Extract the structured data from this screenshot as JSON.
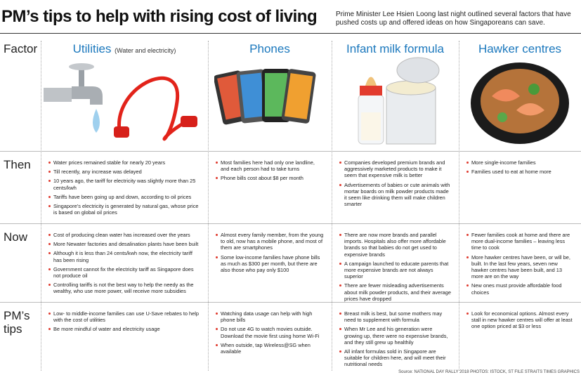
{
  "header": {
    "title": "PM’s tips to help with rising cost of living",
    "subtitle": "Prime Minister Lee Hsien Loong last night outlined several factors that have pushed costs up and offered ideas on how Singaporeans can save."
  },
  "table": {
    "corner": "Factor",
    "columns": [
      {
        "title": "Utilities",
        "note": "(Water and electricity)"
      },
      {
        "title": "Phones"
      },
      {
        "title": "Infant milk formula"
      },
      {
        "title": "Hawker centres"
      }
    ],
    "rows": [
      {
        "label": "Then",
        "cells": [
          [
            "Water prices remained stable for nearly 20 years",
            "Till recently, any increase was delayed",
            "10 years ago, the tariff for electricity was slightly more than 25 cents/kwh",
            "Tariffs have been going up and down, according to oil prices",
            "Singapore’s electricity is generated by natural gas, whose price is based on global oil prices"
          ],
          [
            "Most families here had only one landline, and each person had to take turns",
            "Phone bills cost about $8 per month"
          ],
          [
            "Companies developed premium brands and aggressively marketed products to make it seem that expensive milk is better",
            "Advertisements of babies or cute animals with mortar boards on milk powder products made it seem like drinking them will make children smarter"
          ],
          [
            "More single-income families",
            "Families used to eat at home more"
          ]
        ]
      },
      {
        "label": "Now",
        "cells": [
          [
            "Cost of producing clean water has increased over the years",
            "More Newater factories and desalination plants have been built",
            "Although it is less than 24 cents/kwh now, the electricity tariff has been rising",
            "Government cannot fix the electricity tariff as Singapore does not produce oil",
            "Controlling tariffs is not the best way to help the needy as the wealthy, who use more power, will receive more subsidies"
          ],
          [
            "Almost every family member, from the young to old, now has a mobile phone, and most of them are smartphones",
            "Some low-income families have phone bills as much as $300 per month, but there are also those who pay only $100"
          ],
          [
            "There are now more brands and parallel imports. Hospitals also offer more affordable brands so that babies do not get used to expensive brands",
            "A campaign launched to educate parents that more expensive brands are not always superior",
            "There are fewer misleading advertisements about milk powder products, and their average prices have dropped"
          ],
          [
            "Fewer families cook at home and there are more dual-income families – leaving less time to cook",
            "More hawker centres have been, or will be, built. In the last few years, seven new hawker centres have been built, and 13 more are on the way",
            "New ones must provide affordable food choices"
          ]
        ]
      },
      {
        "label": "PM’s tips",
        "cells": [
          [
            "Low- to middle-income families can use U-Save rebates to help with the cost of utilities",
            "Be more mindful of water and electricity usage"
          ],
          [
            "Watching data usage can help with high phone bills",
            "Do not use 4G to watch movies outside. Download the movie first using home Wi-Fi",
            "When outside, tap Wireless@SG when available"
          ],
          [
            "Breast milk is best, but some mothers may need to supplement with formula",
            "When Mr Lee and his generation were growing up, there were no expensive brands, and they still grew up healthily",
            "All infant formulas sold in Singapore are suitable for children here, and will meet their nutritional needs"
          ],
          [
            "Look for economical options. Almost every stall in new hawker centres will offer at least one option priced at $3 or less"
          ]
        ]
      }
    ]
  },
  "footer": {
    "source": "Source: NATIONAL DAY RALLY 2018  PHOTOS: ISTOCK, ST FILE  STRAITS TIMES GRAPHICS"
  }
}
